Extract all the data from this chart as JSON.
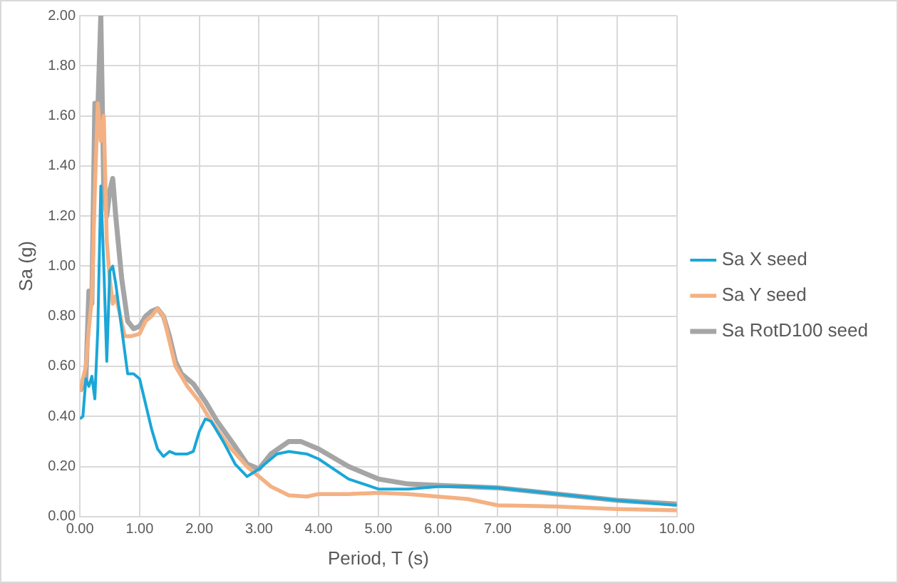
{
  "chart_data": {
    "type": "line",
    "xlabel": "Period, T (s)",
    "ylabel": "Sa (g)",
    "xlim": [
      0,
      10
    ],
    "xticks": [
      {
        "value": 0,
        "label": "0.00"
      },
      {
        "value": 1,
        "label": "1.00"
      },
      {
        "value": 2,
        "label": "2.00"
      },
      {
        "value": 3,
        "label": "3.00"
      },
      {
        "value": 4,
        "label": "4.00"
      },
      {
        "value": 5,
        "label": "5.00"
      },
      {
        "value": 6,
        "label": "6.00"
      },
      {
        "value": 7,
        "label": "7.00"
      },
      {
        "value": 8,
        "label": "8.00"
      },
      {
        "value": 9,
        "label": "9.00"
      },
      {
        "value": 10,
        "label": "10.00"
      }
    ],
    "ylim": [
      0,
      2
    ],
    "yticks": [
      {
        "value": 0,
        "label": "0.00"
      },
      {
        "value": 0.2,
        "label": "0.20"
      },
      {
        "value": 0.4,
        "label": "0.40"
      },
      {
        "value": 0.6,
        "label": "0.60"
      },
      {
        "value": 0.8,
        "label": "0.80"
      },
      {
        "value": 1,
        "label": "1.00"
      },
      {
        "value": 1.2,
        "label": "1.20"
      },
      {
        "value": 1.4,
        "label": "1.40"
      },
      {
        "value": 1.6,
        "label": "1.60"
      },
      {
        "value": 1.8,
        "label": "1.80"
      },
      {
        "value": 2,
        "label": "2.00"
      }
    ],
    "grid": true,
    "legend": "right",
    "marker": "none",
    "line_style": "solid",
    "series": [
      {
        "name": "Sa X seed",
        "color": "#1aa7d8",
        "x": [
          0,
          0.05,
          0.1,
          0.15,
          0.2,
          0.25,
          0.3,
          0.35,
          0.4,
          0.45,
          0.5,
          0.55,
          0.6,
          0.7,
          0.8,
          0.9,
          1.0,
          1.1,
          1.2,
          1.3,
          1.4,
          1.5,
          1.6,
          1.8,
          1.9,
          2.0,
          2.1,
          2.2,
          2.4,
          2.6,
          2.8,
          3.0,
          3.3,
          3.5,
          3.8,
          4.0,
          4.5,
          5.0,
          5.5,
          6.0,
          6.5,
          7.0,
          8.0,
          9.0,
          10
        ],
        "values": [
          0.39,
          0.4,
          0.55,
          0.52,
          0.56,
          0.47,
          0.75,
          1.32,
          1.0,
          0.62,
          0.98,
          1.0,
          0.93,
          0.75,
          0.57,
          0.57,
          0.55,
          0.45,
          0.35,
          0.27,
          0.24,
          0.26,
          0.25,
          0.25,
          0.26,
          0.34,
          0.39,
          0.38,
          0.3,
          0.21,
          0.16,
          0.19,
          0.25,
          0.26,
          0.25,
          0.23,
          0.15,
          0.11,
          0.11,
          0.12,
          0.12,
          0.115,
          0.09,
          0.065,
          0.045
        ]
      },
      {
        "name": "Sa Y seed",
        "color": "#f4b183",
        "x": [
          0,
          0.1,
          0.15,
          0.2,
          0.25,
          0.3,
          0.35,
          0.4,
          0.45,
          0.5,
          0.55,
          0.6,
          0.65,
          0.75,
          0.85,
          1.0,
          1.1,
          1.2,
          1.3,
          1.4,
          1.5,
          1.6,
          1.8,
          2.0,
          2.2,
          2.5,
          2.8,
          3.0,
          3.2,
          3.5,
          3.8,
          4.0,
          4.5,
          5.0,
          5.5,
          6.0,
          6.5,
          7.0,
          8.0,
          9.0,
          10
        ],
        "values": [
          0.5,
          0.6,
          0.75,
          0.87,
          1.3,
          1.65,
          1.5,
          1.6,
          1.1,
          0.95,
          0.85,
          0.88,
          0.83,
          0.72,
          0.72,
          0.73,
          0.78,
          0.8,
          0.83,
          0.8,
          0.7,
          0.6,
          0.52,
          0.46,
          0.38,
          0.28,
          0.2,
          0.16,
          0.12,
          0.085,
          0.08,
          0.09,
          0.09,
          0.095,
          0.09,
          0.08,
          0.07,
          0.045,
          0.04,
          0.03,
          0.025
        ]
      },
      {
        "name": "Sa RotD100 seed",
        "color": "#a5a5a5",
        "x": [
          0,
          0.1,
          0.15,
          0.2,
          0.25,
          0.3,
          0.35,
          0.4,
          0.45,
          0.5,
          0.55,
          0.6,
          0.7,
          0.8,
          0.9,
          1.0,
          1.1,
          1.2,
          1.3,
          1.4,
          1.5,
          1.6,
          1.7,
          1.9,
          2.1,
          2.3,
          2.6,
          2.8,
          3.0,
          3.2,
          3.5,
          3.7,
          4.0,
          4.5,
          5.0,
          5.5,
          6.0,
          6.5,
          7.0,
          8.0,
          9.0,
          10
        ],
        "values": [
          0.5,
          0.55,
          0.9,
          0.85,
          1.65,
          1.62,
          2.0,
          1.3,
          1.2,
          1.3,
          1.35,
          1.2,
          0.95,
          0.78,
          0.75,
          0.76,
          0.8,
          0.82,
          0.83,
          0.8,
          0.72,
          0.62,
          0.57,
          0.53,
          0.46,
          0.38,
          0.28,
          0.21,
          0.19,
          0.25,
          0.3,
          0.3,
          0.27,
          0.2,
          0.15,
          0.13,
          0.125,
          0.12,
          0.115,
          0.09,
          0.065,
          0.05
        ]
      }
    ]
  }
}
